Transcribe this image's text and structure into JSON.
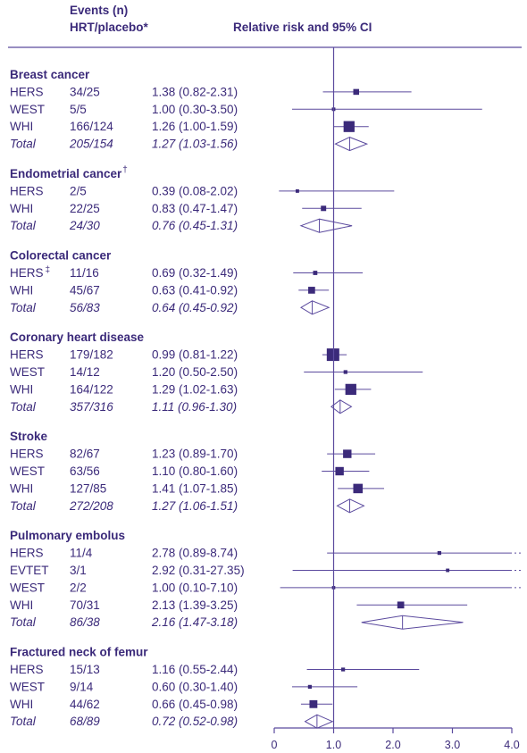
{
  "header": {
    "events_line1": "Events (n)",
    "events_line2": "HRT/placebo*",
    "rr_title": "Relative risk and 95% CI"
  },
  "colors": {
    "ink": "#3b2a7a",
    "line": "#5b4a9e"
  },
  "chart_data": {
    "type": "forest",
    "title": "",
    "xlabel": "",
    "x_ticks": [
      0,
      1.0,
      2.0,
      3.0,
      4.0
    ],
    "x_tick_labels": [
      "0",
      "1.0",
      "2.0",
      "3.0",
      "4.0"
    ],
    "xlim": [
      0,
      4.0
    ],
    "reference_line": 1.0,
    "groups": [
      {
        "name": "Breast cancer",
        "mark": "",
        "rows": [
          {
            "study": "HERS",
            "mark": "",
            "events": "34/25",
            "ci_text": "1.38 (0.82-2.31)",
            "rr": 1.38,
            "lo": 0.82,
            "hi": 2.31,
            "weight": 0.35
          },
          {
            "study": "WEST",
            "mark": "",
            "events": "5/5",
            "ci_text": "1.00 (0.30-3.50)",
            "rr": 1.0,
            "lo": 0.3,
            "hi": 3.5,
            "weight": 0.12
          },
          {
            "study": "WHI",
            "mark": "",
            "events": "166/124",
            "ci_text": "1.26 (1.00-1.59)",
            "rr": 1.26,
            "lo": 1.0,
            "hi": 1.59,
            "weight": 0.85
          },
          {
            "study": "Total",
            "mark": "",
            "events": "205/154",
            "ci_text": "1.27 (1.03-1.56)",
            "rr": 1.27,
            "lo": 1.03,
            "hi": 1.56,
            "total": true
          }
        ]
      },
      {
        "name": "Endometrial cancer",
        "mark": "†",
        "rows": [
          {
            "study": "HERS",
            "mark": "",
            "events": "2/5",
            "ci_text": "0.39 (0.08-2.02)",
            "rr": 0.39,
            "lo": 0.08,
            "hi": 2.02,
            "weight": 0.12
          },
          {
            "study": "WHI",
            "mark": "",
            "events": "22/25",
            "ci_text": "0.83 (0.47-1.47)",
            "rr": 0.83,
            "lo": 0.47,
            "hi": 1.47,
            "weight": 0.3
          },
          {
            "study": "Total",
            "mark": "",
            "events": "24/30",
            "ci_text": "0.76 (0.45-1.31)",
            "rr": 0.76,
            "lo": 0.45,
            "hi": 1.31,
            "total": true
          }
        ]
      },
      {
        "name": "Colorectal cancer",
        "mark": "",
        "rows": [
          {
            "study": "HERS",
            "mark": "‡",
            "events": "11/16",
            "ci_text": "0.69 (0.32-1.49)",
            "rr": 0.69,
            "lo": 0.32,
            "hi": 1.49,
            "weight": 0.2
          },
          {
            "study": "WHI",
            "mark": "",
            "events": "45/67",
            "ci_text": "0.63 (0.41-0.92)",
            "rr": 0.63,
            "lo": 0.41,
            "hi": 0.92,
            "weight": 0.45
          },
          {
            "study": "Total",
            "mark": "",
            "events": "56/83",
            "ci_text": "0.64 (0.45-0.92)",
            "rr": 0.64,
            "lo": 0.45,
            "hi": 0.92,
            "total": true
          }
        ]
      },
      {
        "name": "Coronary heart disease",
        "mark": "",
        "rows": [
          {
            "study": "HERS",
            "mark": "",
            "events": "179/182",
            "ci_text": "0.99 (0.81-1.22)",
            "rr": 0.99,
            "lo": 0.81,
            "hi": 1.22,
            "weight": 1.0
          },
          {
            "study": "WEST",
            "mark": "",
            "events": "14/12",
            "ci_text": "1.20 (0.50-2.50)",
            "rr": 1.2,
            "lo": 0.5,
            "hi": 2.5,
            "weight": 0.15
          },
          {
            "study": "WHI",
            "mark": "",
            "events": "164/122",
            "ci_text": "1.29 (1.02-1.63)",
            "rr": 1.29,
            "lo": 1.02,
            "hi": 1.63,
            "weight": 0.85
          },
          {
            "study": "Total",
            "mark": "",
            "events": "357/316",
            "ci_text": "1.11 (0.96-1.30)",
            "rr": 1.11,
            "lo": 0.96,
            "hi": 1.3,
            "total": true
          }
        ]
      },
      {
        "name": "Stroke",
        "mark": "",
        "rows": [
          {
            "study": "HERS",
            "mark": "",
            "events": "82/67",
            "ci_text": "1.23 (0.89-1.70)",
            "rr": 1.23,
            "lo": 0.89,
            "hi": 1.7,
            "weight": 0.6
          },
          {
            "study": "WEST",
            "mark": "",
            "events": "63/56",
            "ci_text": "1.10 (0.80-1.60)",
            "rr": 1.1,
            "lo": 0.8,
            "hi": 1.6,
            "weight": 0.6
          },
          {
            "study": "WHI",
            "mark": "",
            "events": "127/85",
            "ci_text": "1.41 (1.07-1.85)",
            "rr": 1.41,
            "lo": 1.07,
            "hi": 1.85,
            "weight": 0.7
          },
          {
            "study": "Total",
            "mark": "",
            "events": "272/208",
            "ci_text": "1.27 (1.06-1.51)",
            "rr": 1.27,
            "lo": 1.06,
            "hi": 1.51,
            "total": true
          }
        ]
      },
      {
        "name": "Pulmonary embolus",
        "mark": "",
        "rows": [
          {
            "study": "HERS",
            "mark": "",
            "events": "11/4",
            "ci_text": "2.78 (0.89-8.74)",
            "rr": 2.78,
            "lo": 0.89,
            "hi": 8.74,
            "weight": 0.15
          },
          {
            "study": "EVTET",
            "mark": "",
            "events": "3/1",
            "ci_text": "2.92 (0.31-27.35)",
            "rr": 2.92,
            "lo": 0.31,
            "hi": 27.35,
            "weight": 0.12
          },
          {
            "study": "WEST",
            "mark": "",
            "events": "2/2",
            "ci_text": "1.00 (0.10-7.10)",
            "rr": 1.0,
            "lo": 0.1,
            "hi": 7.1,
            "weight": 0.1
          },
          {
            "study": "WHI",
            "mark": "",
            "events": "70/31",
            "ci_text": "2.13 (1.39-3.25)",
            "rr": 2.13,
            "lo": 1.39,
            "hi": 3.25,
            "weight": 0.45
          },
          {
            "study": "Total",
            "mark": "",
            "events": "86/38",
            "ci_text": "2.16 (1.47-3.18)",
            "rr": 2.16,
            "lo": 1.47,
            "hi": 3.18,
            "total": true
          }
        ]
      },
      {
        "name": "Fractured neck of femur",
        "mark": "",
        "rows": [
          {
            "study": "HERS",
            "mark": "",
            "events": "15/13",
            "ci_text": "1.16 (0.55-2.44)",
            "rr": 1.16,
            "lo": 0.55,
            "hi": 2.44,
            "weight": 0.15
          },
          {
            "study": "WEST",
            "mark": "",
            "events": "9/14",
            "ci_text": "0.60 (0.30-1.40)",
            "rr": 0.6,
            "lo": 0.3,
            "hi": 1.4,
            "weight": 0.15
          },
          {
            "study": "WHI",
            "mark": "",
            "events": "44/62",
            "ci_text": "0.66 (0.45-0.98)",
            "rr": 0.66,
            "lo": 0.45,
            "hi": 0.98,
            "weight": 0.55
          },
          {
            "study": "Total",
            "mark": "",
            "events": "68/89",
            "ci_text": "0.72 (0.52-0.98)",
            "rr": 0.72,
            "lo": 0.52,
            "hi": 0.98,
            "total": true
          }
        ]
      }
    ]
  }
}
